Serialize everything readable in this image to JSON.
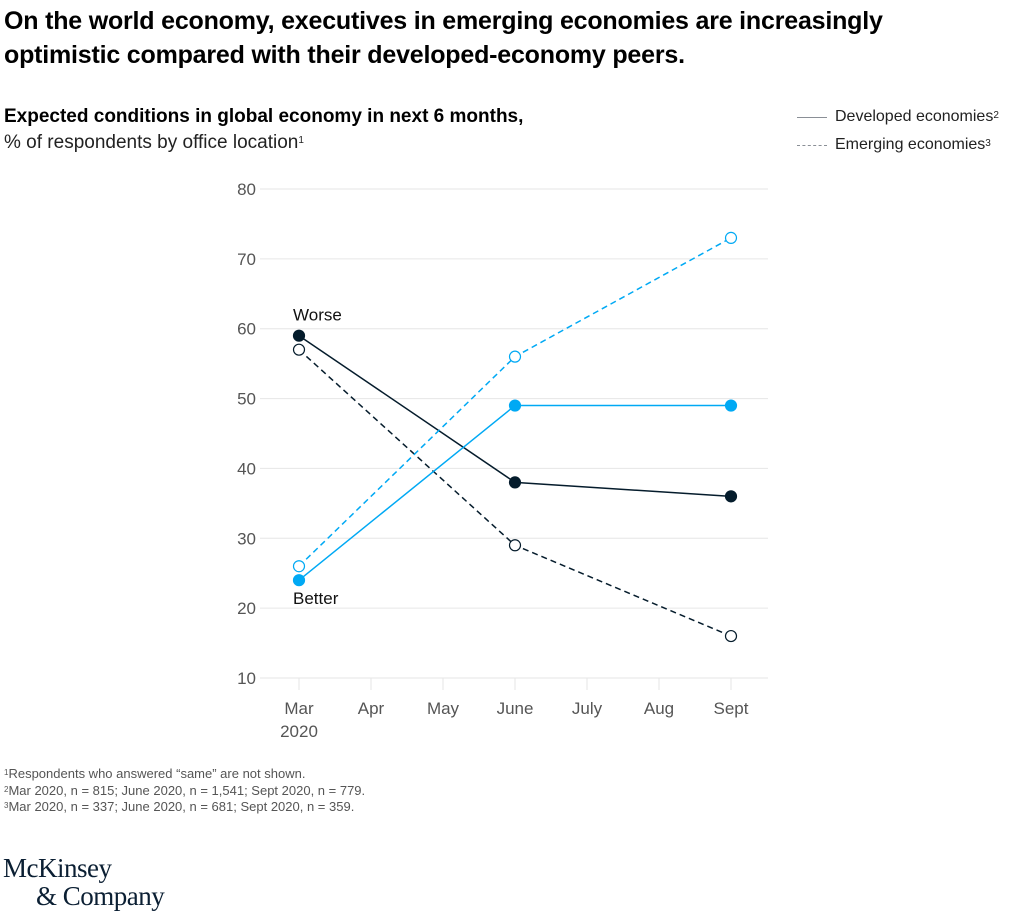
{
  "headline": "On the world economy, executives in emerging economies are increasingly optimistic compared with their developed-economy peers.",
  "subtitle": {
    "bold": "Expected conditions in global economy in next 6 months,",
    "regular": "% of respondents by office location",
    "regular_sup": "1"
  },
  "legend": [
    {
      "label": "Developed economies",
      "sup": "2",
      "style": "solid"
    },
    {
      "label": "Emerging economies",
      "sup": "3",
      "style": "dashed"
    }
  ],
  "footnotes": [
    {
      "sup": "1",
      "text": "Respondents who answered “same” are not shown."
    },
    {
      "sup": "2",
      "text": "Mar 2020, n = 815; June 2020, n = 1,541; Sept 2020, n = 779."
    },
    {
      "sup": "3",
      "text": "Mar 2020, n = 337; June 2020, n = 681; Sept 2020, n = 359."
    }
  ],
  "logo": {
    "line1": "McKinsey",
    "line2": "& Company"
  },
  "colors": {
    "worse": "#051c2c",
    "better": "#00a9f4",
    "grid": "#e6e6e6",
    "axis_text": "#555555"
  },
  "chart_data": {
    "type": "line",
    "title": "Expected conditions in global economy in next 6 months, % of respondents by office location",
    "xlabel": "",
    "ylabel": "",
    "x": [
      "Mar 2020",
      "Apr",
      "May",
      "June",
      "July",
      "Aug",
      "Sept"
    ],
    "x_tick_labels": [
      [
        "Mar",
        "2020"
      ],
      [
        "Apr"
      ],
      [
        "May"
      ],
      [
        "June"
      ],
      [
        "July"
      ],
      [
        "Aug"
      ],
      [
        "Sept"
      ]
    ],
    "ylim": [
      10,
      80
    ],
    "yticks": [
      10,
      20,
      30,
      40,
      50,
      60,
      70,
      80
    ],
    "grid": true,
    "legend_position": "top-right",
    "series": [
      {
        "name": "Worse – Developed economies",
        "group": "worse",
        "economy": "developed",
        "style": "solid",
        "x": [
          "Mar 2020",
          "June",
          "Sept"
        ],
        "values": [
          59,
          38,
          36
        ]
      },
      {
        "name": "Worse – Emerging economies",
        "group": "worse",
        "economy": "emerging",
        "style": "dashed",
        "x": [
          "Mar 2020",
          "June",
          "Sept"
        ],
        "values": [
          57,
          29,
          16
        ]
      },
      {
        "name": "Better – Developed economies",
        "group": "better",
        "economy": "developed",
        "style": "solid",
        "x": [
          "Mar 2020",
          "June",
          "Sept"
        ],
        "values": [
          24,
          49,
          49
        ]
      },
      {
        "name": "Better – Emerging economies",
        "group": "better",
        "economy": "emerging",
        "style": "dashed",
        "x": [
          "Mar 2020",
          "June",
          "Sept"
        ],
        "values": [
          26,
          56,
          73
        ]
      }
    ],
    "annotations": [
      {
        "text": "Worse",
        "series": "worse",
        "x": "Mar 2020",
        "position": "above"
      },
      {
        "text": "Better",
        "series": "better",
        "x": "Mar 2020",
        "position": "below"
      }
    ]
  }
}
